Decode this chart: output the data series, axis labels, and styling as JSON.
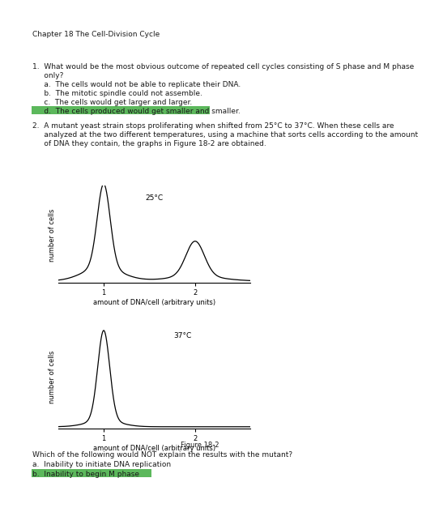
{
  "title": "Chapter 18 The Cell-Division Cycle",
  "q1_line1": "1.  What would be the most obvious outcome of repeated cell cycles consisting of S phase and M phase",
  "q1_line2": "     only?",
  "q1_a": "     a.  The cells would not be able to replicate their DNA.",
  "q1_b": "     b.  The mitotic spindle could not assemble.",
  "q1_c": "     c.  The cells would get larger and larger.",
  "q1_d": "     d.  The cells produced would get smaller and smaller.",
  "q2_line1": "2.  A mutant yeast strain stops proliferating when shifted from 25°C to 37°C. When these cells are",
  "q2_line2": "     analyzed at the two different temperatures, using a machine that sorts cells according to the amount",
  "q2_line3": "     of DNA they contain, the graphs in Figure 18-2 are obtained.",
  "graph1_title": "25°C",
  "graph2_title": "37°C",
  "xlabel": "amount of DNA/cell (arbitrary units)",
  "ylabel": "number of cells",
  "fig_caption": "Figure 18-2",
  "q2_followup": "Which of the following would NOT explain the results with the mutant?",
  "q2_a": "a.  Inability to initiate DNA replication",
  "q2_b": "b.  Inability to begin M phase",
  "highlight_color": "#5cb85c",
  "bg_color": "#ffffff",
  "text_color": "#1a1a1a",
  "font_size": 6.5,
  "title_font_size": 6.5
}
